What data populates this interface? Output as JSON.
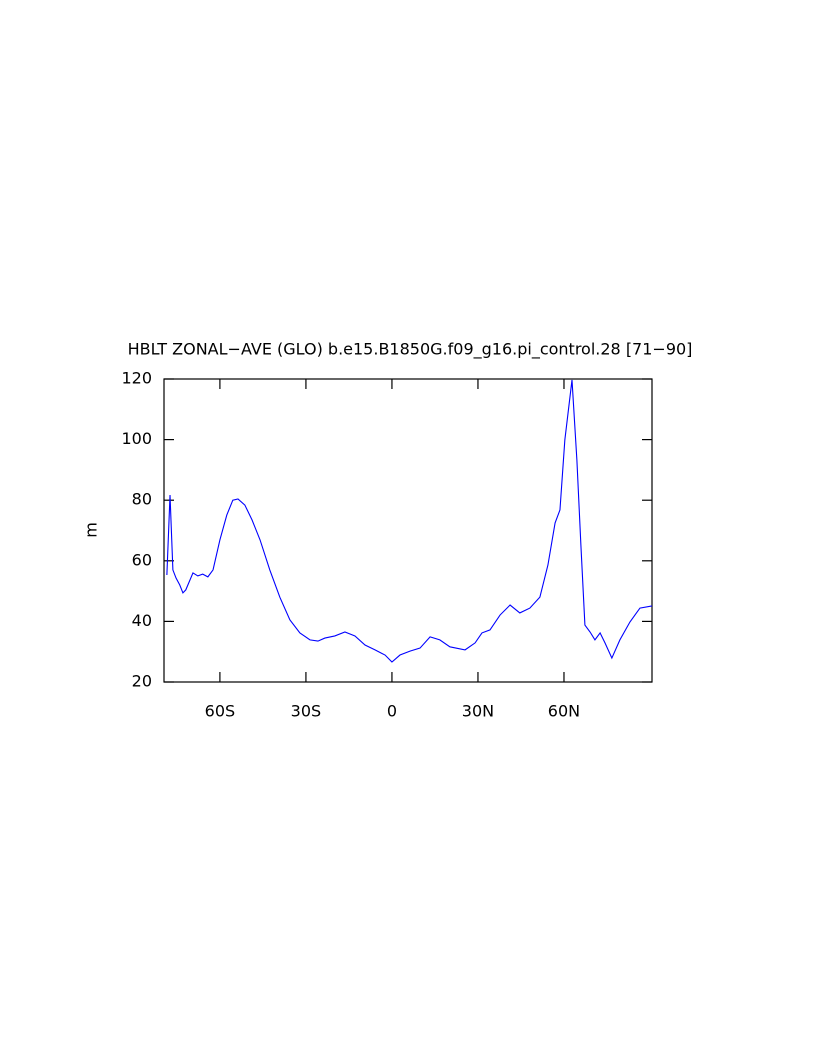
{
  "chart_data": {
    "type": "line",
    "title": "HBLT ZONAL−AVE (GLO) b.e15.B1850G.f09_g16.pi_control.28 [71−90]",
    "ylabel": "m",
    "x": [
      -78.5,
      -77.4,
      -76.4,
      -75.3,
      -74,
      -72.9,
      -71.9,
      -69.4,
      -67.7,
      -66,
      -64.2,
      -62.4,
      -60,
      -57.6,
      -55.5,
      -53.7,
      -51.3,
      -48.8,
      -46,
      -42.6,
      -39.1,
      -35.6,
      -32.1,
      -28.6,
      -25.8,
      -23.4,
      -19.9,
      -16.4,
      -12.9,
      -9.4,
      -5.9,
      -2.4,
      0,
      2.8,
      6.3,
      9.8,
      13.3,
      16.7,
      20.2,
      25.5,
      29,
      31.4,
      34.2,
      37.7,
      41.2,
      44.6,
      48.1,
      51.6,
      54.4,
      56.9,
      58.6,
      60.3,
      62.8,
      64.5,
      65.9,
      67.3,
      69.1,
      70.8,
      72.6,
      74.3,
      76.7,
      79.5,
      83,
      86.5,
      90.7
    ],
    "series": [
      {
        "name": "HBLT",
        "color": "#0000ff",
        "values": [
          55.3,
          81.7,
          57,
          54.3,
          52,
          49.4,
          50.4,
          56,
          55,
          55.6,
          54.7,
          57,
          66.9,
          75.1,
          80,
          80.4,
          78.4,
          73.5,
          66.9,
          57,
          48,
          40.5,
          36.2,
          33.9,
          33.5,
          34.5,
          35.2,
          36.5,
          35.2,
          32.2,
          30.6,
          28.9,
          26.6,
          28.9,
          30.2,
          31.2,
          34.9,
          33.9,
          31.6,
          30.6,
          32.9,
          36.2,
          37.2,
          42.1,
          45.4,
          42.8,
          44.4,
          48,
          58.6,
          72.5,
          76.8,
          99.9,
          119.7,
          93.3,
          65.2,
          38.8,
          36.5,
          33.9,
          36.2,
          32.9,
          27.9,
          33.9,
          39.8,
          44.4,
          45.1
        ]
      }
    ],
    "xlim": [
      -79.5,
      90.7
    ],
    "xticks": [
      {
        "value": -60,
        "label": "60S"
      },
      {
        "value": -30,
        "label": "30S"
      },
      0,
      {
        "value": 30,
        "label": "30N"
      },
      {
        "value": 60,
        "label": "60N"
      }
    ],
    "ylim": [
      20,
      120
    ],
    "yticks": [
      20,
      40,
      60,
      80,
      100,
      120
    ],
    "grid": false
  }
}
